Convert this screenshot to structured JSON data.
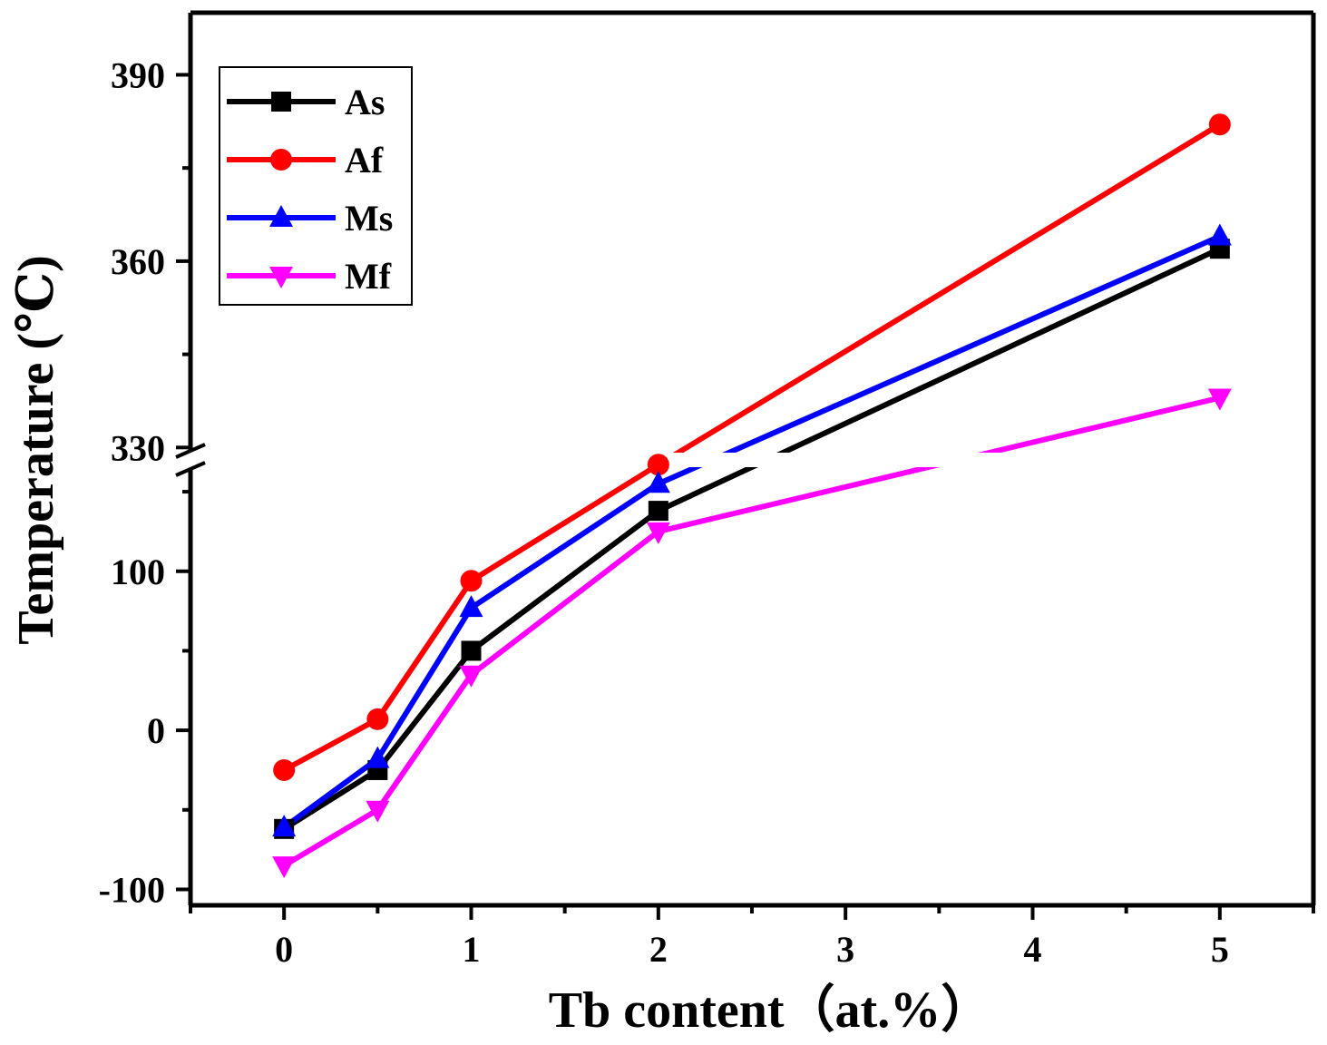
{
  "chart_data": {
    "type": "line",
    "title": "",
    "xlabel": "Tb content（at.%）",
    "ylabel": "Temperature (℃)",
    "xlim": [
      -0.5,
      5.5
    ],
    "x_ticks": [
      0,
      1,
      2,
      3,
      4,
      5
    ],
    "x_tick_labels": [
      "0",
      "1",
      "2",
      "3",
      "4",
      "5"
    ],
    "y_axis_break": true,
    "ylim_lower": [
      -110,
      170
    ],
    "ylim_upper": [
      328,
      400
    ],
    "y_ticks_lower": [
      -100,
      0,
      100
    ],
    "y_tick_labels_lower": [
      "-100",
      "0",
      "100"
    ],
    "y_ticks_upper": [
      330,
      360,
      390
    ],
    "y_tick_labels_upper": [
      "330",
      "360",
      "390"
    ],
    "legend_position": "top-left",
    "x": [
      0,
      0.5,
      1,
      2,
      5
    ],
    "series": [
      {
        "name": "As",
        "color": "#000000",
        "marker": "square",
        "values": [
          -62,
          -25,
          50,
          138,
          362
        ]
      },
      {
        "name": "Af",
        "color": "#ff0000",
        "marker": "circle",
        "values": [
          -25,
          7,
          94,
          167,
          382
        ]
      },
      {
        "name": "Ms",
        "color": "#0000ff",
        "marker": "triangle-up",
        "values": [
          -61,
          -18,
          77,
          155,
          364
        ]
      },
      {
        "name": "Mf",
        "color": "#ff00ff",
        "marker": "triangle-down",
        "values": [
          -85,
          -50,
          35,
          125,
          338
        ]
      }
    ]
  }
}
